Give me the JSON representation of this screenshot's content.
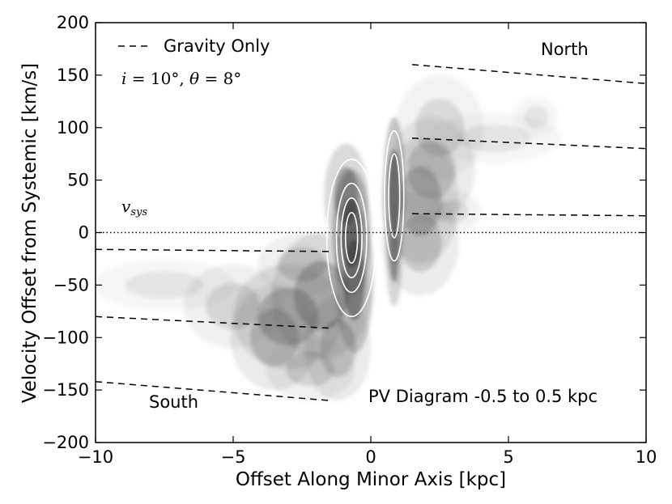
{
  "chart_data": {
    "type": "scatter",
    "xlabel": "Offset Along Minor Axis [kpc]",
    "ylabel": "Velocity Offset from Systemic [km/s]",
    "xlim": [
      -10,
      10
    ],
    "ylim": [
      -200,
      200
    ],
    "x_ticks": [
      -10,
      -5,
      0,
      5,
      10
    ],
    "x_tick_labels": [
      "−10",
      "−5",
      "0",
      "5",
      "10"
    ],
    "y_ticks": [
      -200,
      -150,
      -100,
      -50,
      0,
      50,
      100,
      150,
      200
    ],
    "y_tick_labels": [
      "−200",
      "−150",
      "−100",
      "−50",
      "0",
      "50",
      "100",
      "150",
      "200"
    ],
    "grid": false,
    "legend": {
      "position": "top-left",
      "entries": [
        {
          "label": "Gravity Only",
          "style": "dashed",
          "color": "#000000"
        }
      ]
    },
    "annotations": {
      "params": "i = 10° , θ = 8°",
      "vsys": "v_sys",
      "north": "North",
      "south": "South",
      "panel_title": "PV Diagram -0.5 to 0.5 kpc"
    },
    "systemic_line": {
      "y": 0,
      "style": "dotted"
    },
    "gravity_model_lines": [
      {
        "x": [
          1.5,
          10
        ],
        "y": [
          160,
          142
        ]
      },
      {
        "x": [
          1.5,
          10
        ],
        "y": [
          90,
          80
        ]
      },
      {
        "x": [
          1.5,
          10
        ],
        "y": [
          18,
          16
        ]
      },
      {
        "x": [
          -10,
          -1.5
        ],
        "y": [
          -16,
          -18
        ]
      },
      {
        "x": [
          -10,
          -1.5
        ],
        "y": [
          -80,
          -91
        ]
      },
      {
        "x": [
          -10,
          -1.5
        ],
        "y": [
          -142,
          -160
        ]
      }
    ],
    "emission_clumps": [
      {
        "x": -0.7,
        "y": 0,
        "sx": 0.35,
        "sy": 30,
        "a": 1.0
      },
      {
        "x": -0.6,
        "y": -45,
        "sx": 0.35,
        "sy": 35,
        "a": 0.8
      },
      {
        "x": -0.9,
        "y": 35,
        "sx": 0.4,
        "sy": 25,
        "a": 0.6
      },
      {
        "x": 0.85,
        "y": 40,
        "sx": 0.2,
        "sy": 35,
        "a": 0.95
      },
      {
        "x": 0.85,
        "y": -20,
        "sx": 0.15,
        "sy": 25,
        "a": 0.7
      },
      {
        "x": -1.8,
        "y": -60,
        "sx": 0.9,
        "sy": 30,
        "a": 0.45
      },
      {
        "x": -3.0,
        "y": -80,
        "sx": 1.0,
        "sy": 25,
        "a": 0.4
      },
      {
        "x": -3.5,
        "y": -100,
        "sx": 0.8,
        "sy": 25,
        "a": 0.35
      },
      {
        "x": -1.2,
        "y": -110,
        "sx": 0.6,
        "sy": 25,
        "a": 0.35
      },
      {
        "x": -2.2,
        "y": -130,
        "sx": 0.8,
        "sy": 15,
        "a": 0.25
      },
      {
        "x": -5.0,
        "y": -70,
        "sx": 0.9,
        "sy": 20,
        "a": 0.25
      },
      {
        "x": -7.5,
        "y": -50,
        "sx": 1.3,
        "sy": 12,
        "a": 0.15
      },
      {
        "x": -2.5,
        "y": -30,
        "sx": 0.8,
        "sy": 15,
        "a": 0.25
      },
      {
        "x": 1.8,
        "y": 30,
        "sx": 0.7,
        "sy": 30,
        "a": 0.4
      },
      {
        "x": 2.2,
        "y": 60,
        "sx": 0.8,
        "sy": 25,
        "a": 0.3
      },
      {
        "x": 2.5,
        "y": 100,
        "sx": 0.8,
        "sy": 25,
        "a": 0.22
      },
      {
        "x": 1.8,
        "y": -10,
        "sx": 0.7,
        "sy": 25,
        "a": 0.3
      },
      {
        "x": 4.5,
        "y": 90,
        "sx": 1.2,
        "sy": 12,
        "a": 0.15
      },
      {
        "x": 6.0,
        "y": 110,
        "sx": 0.4,
        "sy": 10,
        "a": 0.15
      },
      {
        "x": 3.0,
        "y": 20,
        "sx": 0.5,
        "sy": 10,
        "a": 0.18
      }
    ]
  }
}
